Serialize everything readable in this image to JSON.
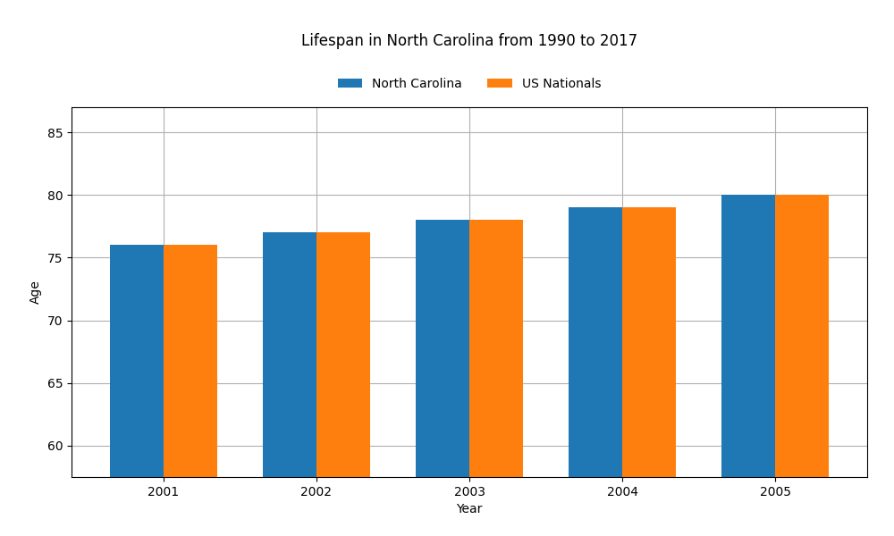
{
  "chart_data": {
    "type": "bar",
    "title": "Lifespan in North Carolina from 1990 to 2017",
    "x_label": "Year",
    "y_label": "Age",
    "categories": [
      "2001",
      "2002",
      "2003",
      "2004",
      "2005"
    ],
    "series": [
      {
        "name": "North Carolina",
        "values": [
          76,
          77,
          78,
          79,
          80
        ]
      },
      {
        "name": "US Nationals",
        "values": [
          76,
          77,
          78,
          79,
          80
        ]
      }
    ],
    "ylim": [
      57.5,
      87
    ],
    "yticks": [
      60,
      65,
      70,
      75,
      80,
      85
    ],
    "grid": true,
    "legend": "upper center"
  }
}
